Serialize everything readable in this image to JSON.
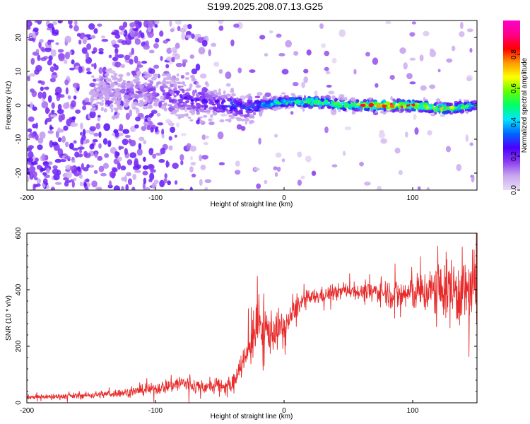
{
  "title": "S199.2025.208.07.13.G25",
  "chart_data": [
    {
      "type": "heatmap",
      "xlabel": "Height of straight line (km)",
      "ylabel": "Frequency (Hz)",
      "xlim": [
        -200,
        150
      ],
      "ylim": [
        -25,
        25
      ],
      "xticks": [
        -200,
        -100,
        0,
        100
      ],
      "yticks": [
        -20,
        -10,
        0,
        10,
        20
      ],
      "colorbar": {
        "label": "Normalized spectral amplitude",
        "range": [
          0.0,
          1.0
        ],
        "ticks": [
          "0.0",
          "0.2",
          "0.4",
          "0.6",
          "0.8"
        ],
        "colormap": [
          "#e9dcf6",
          "#c9a8ee",
          "#8a3cf0",
          "#4b00ff",
          "#0066ff",
          "#00e5ff",
          "#00ff66",
          "#66ff00",
          "#ffff00",
          "#ff9900",
          "#ff0000",
          "#ff0088",
          "#ff00cc"
        ]
      },
      "ridge": {
        "description_values": "dominant frequency ridge along 0 Hz",
        "x": [
          -200,
          -150,
          -100,
          -75,
          -50,
          -40,
          -30,
          -20,
          0,
          25,
          50,
          75,
          100,
          125,
          150
        ],
        "y": [
          0,
          4,
          4,
          2,
          0,
          0,
          -1,
          0,
          1,
          1,
          0,
          0,
          0,
          -1,
          0
        ],
        "amplitude": [
          0.05,
          0.1,
          0.2,
          0.25,
          0.3,
          0.35,
          0.3,
          0.4,
          0.6,
          0.7,
          0.7,
          0.95,
          0.9,
          0.8,
          0.5
        ]
      }
    },
    {
      "type": "line",
      "xlabel": "Height of straight line (km)",
      "ylabel": "SNR (10 * v/v)",
      "xlim": [
        -200,
        150
      ],
      "ylim": [
        0,
        600
      ],
      "xticks": [
        -200,
        -100,
        0,
        100
      ],
      "yticks": [
        0,
        200,
        400,
        600
      ],
      "line_color": "#e82a2a",
      "series": [
        {
          "x": [
            -200,
            -180,
            -160,
            -140,
            -120,
            -100,
            -90,
            -80,
            -70,
            -60,
            -50,
            -40,
            -35,
            -30,
            -25,
            -20,
            -15,
            -10,
            -5,
            0,
            5,
            10,
            15,
            20,
            25,
            30,
            40,
            50,
            60,
            70,
            80,
            90,
            100,
            110,
            120,
            130,
            140,
            150
          ],
          "y": [
            20,
            22,
            25,
            30,
            38,
            50,
            60,
            70,
            60,
            55,
            60,
            60,
            130,
            150,
            230,
            280,
            260,
            250,
            260,
            260,
            300,
            340,
            360,
            370,
            375,
            380,
            390,
            400,
            390,
            395,
            390,
            380,
            390,
            390,
            400,
            400,
            390,
            400
          ],
          "spread": [
            8,
            9,
            10,
            12,
            14,
            20,
            25,
            30,
            25,
            20,
            25,
            30,
            40,
            60,
            80,
            90,
            80,
            70,
            60,
            60,
            40,
            35,
            30,
            28,
            26,
            25,
            25,
            25,
            25,
            30,
            45,
            55,
            60,
            70,
            90,
            110,
            120,
            130
          ]
        }
      ]
    }
  ]
}
